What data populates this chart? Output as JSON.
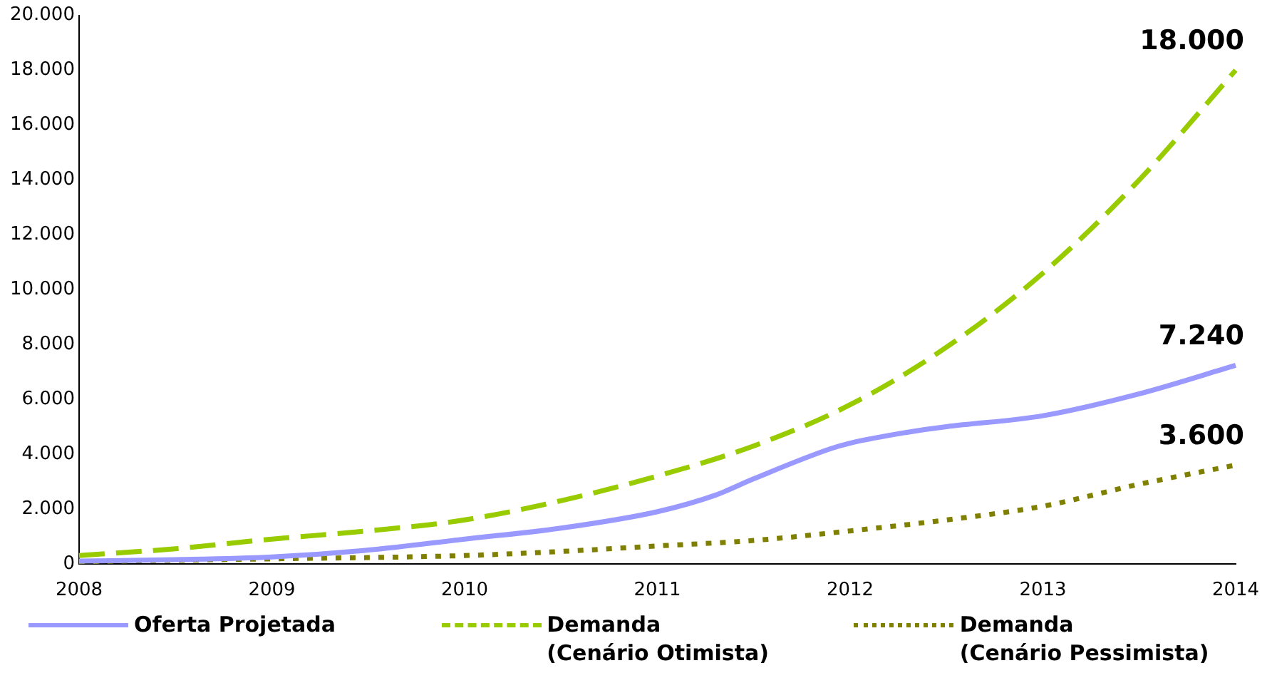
{
  "chart_data": {
    "type": "line",
    "series": [
      {
        "name": "Oferta Projetada",
        "color": "#9999ff",
        "line_style": "solid",
        "x": [
          2008,
          2008.5,
          2009,
          2009.5,
          2010,
          2010.5,
          2011,
          2011.3,
          2011.5,
          2011.9,
          2012,
          2012.3,
          2012.5,
          2013,
          2013.5,
          2014
        ],
        "values": [
          100,
          150,
          250,
          500,
          900,
          1300,
          1900,
          2500,
          3100,
          4200,
          4400,
          4800,
          5000,
          5400,
          6200,
          7240
        ],
        "value_labels": [
          null,
          null,
          null,
          null,
          null,
          null,
          null,
          null,
          null,
          null,
          null,
          null,
          null,
          null,
          null,
          "7.240"
        ]
      },
      {
        "name": "Demanda\n(Cenário Otimista)",
        "color": "#99cc00",
        "line_style": "dashed",
        "x": [
          2008,
          2008.5,
          2009,
          2009.5,
          2010,
          2010.5,
          2011,
          2011.5,
          2012,
          2012.5,
          2013,
          2013.5,
          2014
        ],
        "values": [
          300,
          550,
          900,
          1200,
          1600,
          2300,
          3200,
          4300,
          5800,
          7900,
          10600,
          14000,
          18000
        ],
        "value_labels": [
          null,
          null,
          null,
          null,
          null,
          null,
          null,
          null,
          null,
          null,
          null,
          null,
          "18.000"
        ]
      },
      {
        "name": "Demanda\n(Cenário Pessimista)",
        "color": "#808000",
        "line_style": "dotted",
        "x": [
          2008,
          2009,
          2010,
          2010.5,
          2011,
          2011.5,
          2012,
          2012.5,
          2013,
          2013.5,
          2014
        ],
        "values": [
          80,
          180,
          300,
          450,
          650,
          850,
          1200,
          1600,
          2100,
          2900,
          3600
        ],
        "value_labels": [
          null,
          null,
          null,
          null,
          null,
          null,
          null,
          null,
          null,
          null,
          "3.600"
        ]
      }
    ],
    "xlim": [
      2008,
      2014
    ],
    "xticks": [
      2008,
      2009,
      2010,
      2011,
      2012,
      2013,
      2014
    ],
    "ylim": [
      0,
      20000
    ],
    "yticks": [
      0,
      {
        "value": 2000,
        "label": "2.000"
      },
      {
        "value": 4000,
        "label": "4.000"
      },
      {
        "value": 6000,
        "label": "6.000"
      },
      {
        "value": 8000,
        "label": "8.000"
      },
      {
        "value": 10000,
        "label": "10.000"
      },
      {
        "value": 12000,
        "label": "12.000"
      },
      {
        "value": 14000,
        "label": "14.000"
      },
      {
        "value": 16000,
        "label": "16.000"
      },
      {
        "value": 18000,
        "label": "18.000"
      },
      {
        "value": 20000,
        "label": "20.000"
      }
    ],
    "grid": false,
    "legend": "bottom",
    "marker": "none"
  }
}
